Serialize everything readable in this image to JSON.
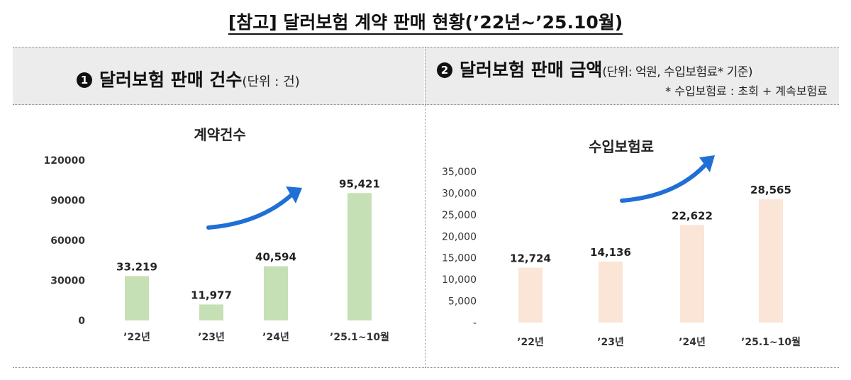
{
  "page": {
    "title": "[참고] 달러보험 계약 판매 현황(’22년~’25.10월)"
  },
  "panel1": {
    "badge": "1",
    "title": "달러보험 판매 건수",
    "unit": "(단위 : 건)"
  },
  "panel2": {
    "badge": "2",
    "title": "달러보험 판매 금액",
    "unit": "(단위: 억원, 수입보험료* 기준)",
    "note": "* 수입보험료 : 초회 + 계속보험료"
  },
  "chart_data": [
    {
      "type": "bar",
      "title": "계약건수",
      "categories": [
        "’22년",
        "’23년",
        "’24년",
        "’25.1~10월"
      ],
      "values": [
        33219,
        11977,
        40594,
        95421
      ],
      "data_labels": [
        "33.219",
        "11,977",
        "40,594",
        "95,421"
      ],
      "y_ticks": [
        "0",
        "30000",
        "60000",
        "90000",
        "120000"
      ],
      "ylim": [
        0,
        120000
      ],
      "bar_color": "#c5e0b4",
      "grid": false,
      "trend_arrow": true
    },
    {
      "type": "bar",
      "title": "수입보험료",
      "categories": [
        "’22년",
        "’23년",
        "’24년",
        "’25.1~10월"
      ],
      "values": [
        12724,
        14136,
        22622,
        28565
      ],
      "data_labels": [
        "12,724",
        "14,136",
        "22,622",
        "28,565"
      ],
      "y_ticks": [
        "-",
        "5,000",
        "10,000",
        "15,000",
        "20,000",
        "25,000",
        "30,000",
        "35,000"
      ],
      "ylim": [
        0,
        35000
      ],
      "bar_color": "#fbe5d6",
      "grid": false,
      "trend_arrow": true
    }
  ],
  "colors": {
    "header_bg": "#ececec",
    "arrow": "#1f6fd6"
  }
}
